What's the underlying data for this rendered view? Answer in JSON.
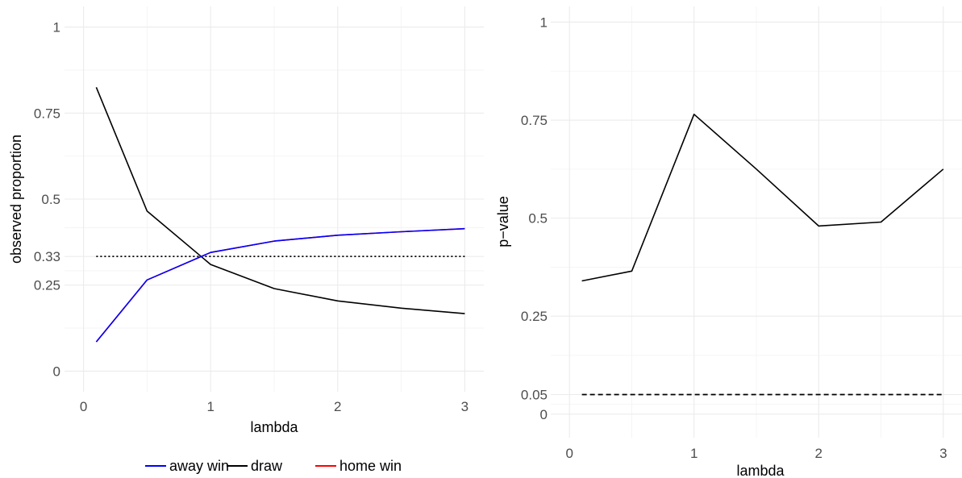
{
  "chart_data": [
    {
      "type": "line",
      "xlabel": "lambda",
      "ylabel": "observed proportion",
      "xlim": [
        -0.15,
        3.15
      ],
      "ylim": [
        -0.06,
        1.06
      ],
      "x_ticks": [
        0,
        1,
        2,
        3
      ],
      "x_tick_labels": [
        "0",
        "1",
        "2",
        "3"
      ],
      "y_ticks": [
        0,
        0.25,
        0.3333,
        0.5,
        0.75,
        1
      ],
      "y_tick_labels": [
        "0",
        "0.25",
        "0.33",
        "0.5",
        "0.75",
        "1"
      ],
      "grid": true,
      "legend_position": "bottom",
      "series": [
        {
          "name": "away win",
          "color": "#0000ff",
          "x": [
            0.1,
            0.5,
            1.0,
            1.5,
            2.0,
            2.5,
            3.0
          ],
          "values": [
            0.085,
            0.265,
            0.345,
            0.378,
            0.395,
            0.405,
            0.414
          ]
        },
        {
          "name": "draw",
          "color": "#000000",
          "x": [
            0.1,
            0.5,
            1.0,
            1.5,
            2.0,
            2.5,
            3.0
          ],
          "values": [
            0.825,
            0.465,
            0.31,
            0.24,
            0.204,
            0.183,
            0.167
          ]
        },
        {
          "name": "home win",
          "color": "#ff0000",
          "x": [
            0.1,
            0.5,
            1.0,
            1.5,
            2.0,
            2.5,
            3.0
          ],
          "values": [
            0.085,
            0.265,
            0.345,
            0.378,
            0.395,
            0.405,
            0.414
          ]
        }
      ],
      "reference_lines": [
        {
          "y": 0.3333,
          "style": "dotted",
          "color": "#000000"
        }
      ]
    },
    {
      "type": "line",
      "xlabel": "lambda",
      "ylabel": "p−value",
      "xlim": [
        -0.15,
        3.15
      ],
      "ylim": [
        -0.06,
        1.04
      ],
      "x_ticks": [
        0,
        1,
        2,
        3
      ],
      "x_tick_labels": [
        "0",
        "1",
        "2",
        "3"
      ],
      "y_ticks": [
        0,
        0.05,
        0.25,
        0.5,
        0.75,
        1
      ],
      "y_tick_labels": [
        "0",
        "0.05",
        "0.25",
        "0.5",
        "0.75",
        "1"
      ],
      "grid": true,
      "series": [
        {
          "color": "#000000",
          "x": [
            0.1,
            0.5,
            1.0,
            1.5,
            2.0,
            2.5,
            3.0
          ],
          "values": [
            0.34,
            0.365,
            0.765,
            0.625,
            0.48,
            0.49,
            0.625
          ]
        }
      ],
      "reference_lines": [
        {
          "y": 0.05,
          "style": "dashed",
          "color": "#000000"
        }
      ]
    }
  ],
  "legend": {
    "items": [
      {
        "label": "away win",
        "color": "#0000ff"
      },
      {
        "label": "draw",
        "color": "#000000"
      },
      {
        "label": "home win",
        "color": "#ff0000"
      }
    ]
  }
}
